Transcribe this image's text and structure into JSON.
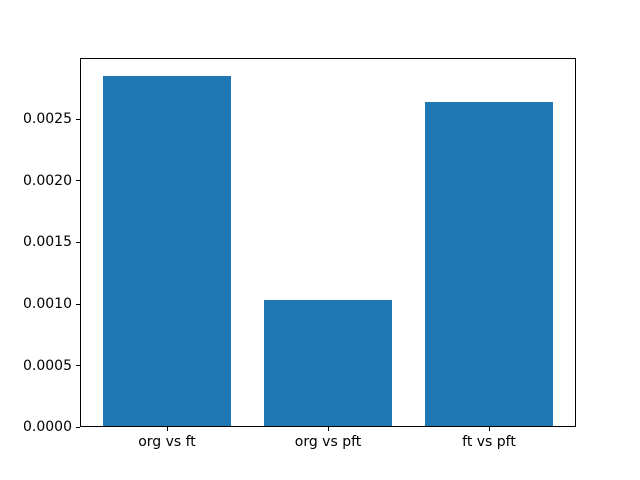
{
  "chart_data": {
    "type": "bar",
    "title": "",
    "xlabel": "",
    "ylabel": "",
    "categories": [
      "org vs ft",
      "org vs pft",
      "ft vs pft"
    ],
    "values": [
      0.00285,
      0.00103,
      0.00264
    ],
    "bar_width": 0.8,
    "xlim": [
      -0.54,
      2.54
    ],
    "ylim": [
      0,
      0.003
    ],
    "yticks": [
      0,
      0.0005,
      0.001,
      0.0015,
      0.002,
      0.0025
    ],
    "ytick_labels": [
      "0.0000",
      "0.0005",
      "0.0010",
      "0.0015",
      "0.0020",
      "0.0025"
    ],
    "bar_color": "#1f77b4",
    "axis_color": "#000000",
    "text_color": "#000000",
    "background_color": "#ffffff",
    "grid": false,
    "legend_position": "none"
  }
}
